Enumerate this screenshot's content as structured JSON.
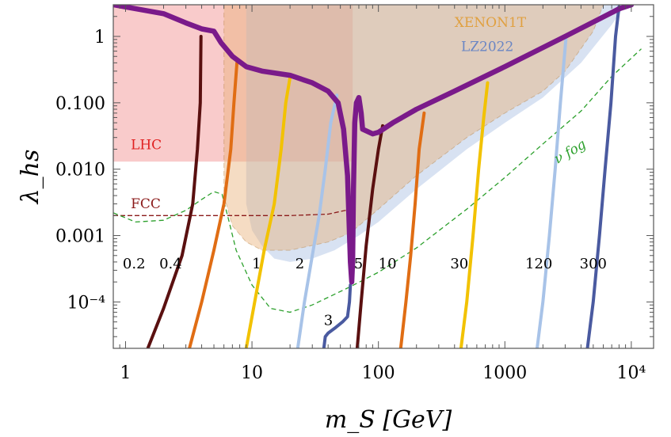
{
  "chart_data": {
    "type": "line",
    "title": "",
    "xlabel": "m_S [GeV]",
    "ylabel": "λ_hs",
    "x_scale": "log",
    "y_scale": "log",
    "xlim": [
      0.8,
      15000
    ],
    "ylim": [
      2e-05,
      3
    ],
    "x_ticks": [
      {
        "value": 1,
        "label": "1"
      },
      {
        "value": 10,
        "label": "10"
      },
      {
        "value": 100,
        "label": "100"
      },
      {
        "value": 1000,
        "label": "1000"
      },
      {
        "value": 10000,
        "label": "10⁴"
      }
    ],
    "y_ticks": [
      {
        "value": 1,
        "label": "1"
      },
      {
        "value": 0.1,
        "label": "0.100"
      },
      {
        "value": 0.01,
        "label": "0.010"
      },
      {
        "value": 0.001,
        "label": "0.001"
      },
      {
        "value": 0.0001,
        "label": "10⁻⁴"
      }
    ],
    "colors": {
      "lhc": "#f28b8b",
      "fcc": "#8b1a1a",
      "xenon_fill": "#e8b17a",
      "xenon_label": "#e0a040",
      "lz_fill": "#a9bfe3",
      "lz_label": "#6a86c4",
      "vfog": "#2ca02c",
      "relic": "#7a1a8a",
      "dark_red": "#5a1010",
      "orange": "#e06d14",
      "yellow": "#f2c200",
      "light_blue": "#a8c3e8",
      "navy": "#4a5aa0"
    },
    "regions": [
      {
        "name": "LHC",
        "label": "LHC",
        "color": "#f28b8b",
        "x_range": [
          0.8,
          62.5
        ],
        "y_range": [
          0.013,
          3
        ]
      },
      {
        "name": "XENON1T",
        "label": "XENON1T",
        "color": "#e8b17a",
        "boundary": [
          [
            6,
            3
          ],
          [
            6,
            0.004
          ],
          [
            7,
            0.0014
          ],
          [
            9,
            0.0008
          ],
          [
            12,
            0.0006
          ],
          [
            20,
            0.0006
          ],
          [
            40,
            0.0008
          ],
          [
            60,
            0.0011
          ],
          [
            100,
            0.0025
          ],
          [
            200,
            0.008
          ],
          [
            500,
            0.03
          ],
          [
            1000,
            0.07
          ],
          [
            2000,
            0.15
          ],
          [
            3000,
            0.3
          ],
          [
            5000,
            1.2
          ],
          [
            6000,
            3
          ]
        ]
      },
      {
        "name": "LZ2022",
        "label": "LZ2022",
        "color": "#a9bfe3",
        "boundary": [
          [
            9,
            3
          ],
          [
            9,
            0.003
          ],
          [
            10,
            0.0012
          ],
          [
            12,
            0.0007
          ],
          [
            15,
            0.00045
          ],
          [
            20,
            0.0004
          ],
          [
            30,
            0.00045
          ],
          [
            45,
            0.0006
          ],
          [
            70,
            0.001
          ],
          [
            100,
            0.0016
          ],
          [
            200,
            0.005
          ],
          [
            500,
            0.02
          ],
          [
            1000,
            0.05
          ],
          [
            2000,
            0.12
          ],
          [
            4000,
            0.4
          ],
          [
            7000,
            1.5
          ],
          [
            9000,
            3
          ]
        ]
      }
    ],
    "fcc": {
      "label": "FCC",
      "color": "#8b1a1a",
      "points": [
        [
          0.8,
          0.002
        ],
        [
          5,
          0.002
        ],
        [
          20,
          0.002
        ],
        [
          40,
          0.0021
        ],
        [
          55,
          0.0024
        ],
        [
          62,
          0.0035
        ]
      ]
    },
    "vfog": {
      "label": "ν fog",
      "color": "#2ca02c",
      "points": [
        [
          0.8,
          0.0022
        ],
        [
          1.2,
          0.0016
        ],
        [
          2,
          0.0017
        ],
        [
          3,
          0.0024
        ],
        [
          4,
          0.0035
        ],
        [
          5,
          0.0046
        ],
        [
          5.8,
          0.0042
        ],
        [
          6.5,
          0.0018
        ],
        [
          7.5,
          0.0006
        ],
        [
          10,
          0.00018
        ],
        [
          14,
          8e-05
        ],
        [
          20,
          7e-05
        ],
        [
          30,
          9e-05
        ],
        [
          60,
          0.00017
        ],
        [
          100,
          0.00028
        ],
        [
          200,
          0.00065
        ],
        [
          500,
          0.0025
        ],
        [
          1000,
          0.0075
        ],
        [
          2000,
          0.024
        ],
        [
          4000,
          0.075
        ],
        [
          7000,
          0.25
        ],
        [
          12000,
          0.65
        ]
      ]
    },
    "relic_curve": {
      "color": "#7a1a8a",
      "points": [
        [
          0.8,
          3
        ],
        [
          2,
          2.2
        ],
        [
          3,
          1.6
        ],
        [
          4,
          1.3
        ],
        [
          5,
          1.2
        ],
        [
          5.7,
          0.8
        ],
        [
          7,
          0.5
        ],
        [
          9,
          0.35
        ],
        [
          12,
          0.3
        ],
        [
          20,
          0.26
        ],
        [
          30,
          0.2
        ],
        [
          40,
          0.15
        ],
        [
          48,
          0.1
        ],
        [
          53,
          0.04
        ],
        [
          57,
          0.008
        ],
        [
          60,
          0.0004
        ],
        [
          61.5,
          0.0002
        ],
        [
          62.5,
          0.0004
        ],
        [
          63.5,
          0.005
        ],
        [
          65,
          0.05
        ],
        [
          67,
          0.1
        ],
        [
          70,
          0.12
        ],
        [
          73,
          0.07
        ],
        [
          75,
          0.04
        ],
        [
          90,
          0.034
        ],
        [
          100,
          0.036
        ],
        [
          130,
          0.05
        ],
        [
          200,
          0.08
        ],
        [
          400,
          0.15
        ],
        [
          1000,
          0.35
        ],
        [
          3000,
          1.0
        ],
        [
          8000,
          2.6
        ],
        [
          10000,
          3
        ]
      ]
    },
    "series": [
      {
        "name": "0.2",
        "color": "#5a1010",
        "points": [
          [
            1.5,
            2e-05
          ],
          [
            2,
            8e-05
          ],
          [
            2.8,
            0.0005
          ],
          [
            3.4,
            0.003
          ],
          [
            3.7,
            0.02
          ],
          [
            3.9,
            0.1
          ],
          [
            3.95,
            1.0
          ]
        ]
      },
      {
        "name": "0.4",
        "color": "#e06d14",
        "points": [
          [
            3.2,
            2e-05
          ],
          [
            4,
            0.0001
          ],
          [
            5,
            0.0006
          ],
          [
            6,
            0.003
          ],
          [
            6.8,
            0.02
          ],
          [
            7.2,
            0.1
          ],
          [
            7.6,
            0.4
          ]
        ]
      },
      {
        "name": "1",
        "color": "#f2c200",
        "points": [
          [
            9,
            2e-05
          ],
          [
            10.5,
            0.0001
          ],
          [
            12.5,
            0.0006
          ],
          [
            15,
            0.003
          ],
          [
            17,
            0.02
          ],
          [
            18.5,
            0.1
          ],
          [
            20,
            0.24
          ]
        ]
      },
      {
        "name": "2",
        "color": "#a8c3e8",
        "points": [
          [
            23,
            2e-05
          ],
          [
            26,
            0.0001
          ],
          [
            30,
            0.0005
          ],
          [
            34,
            0.002
          ],
          [
            38,
            0.01
          ],
          [
            42,
            0.05
          ],
          [
            47,
            0.13
          ]
        ]
      },
      {
        "name": "3",
        "color": "#4a5aa0",
        "points": [
          [
            37,
            2e-05
          ],
          [
            38,
            3e-05
          ],
          [
            40,
            3.4e-05
          ],
          [
            45,
            4e-05
          ],
          [
            52,
            5e-05
          ],
          [
            57,
            6e-05
          ],
          [
            59,
            0.0001
          ],
          [
            60,
            0.00018
          ]
        ]
      },
      {
        "name": "5",
        "color": "#5a1010",
        "points": [
          [
            68,
            2e-05
          ],
          [
            73,
            0.0001
          ],
          [
            80,
            0.0007
          ],
          [
            90,
            0.005
          ],
          [
            100,
            0.02
          ],
          [
            108,
            0.045
          ]
        ]
      },
      {
        "name": "10",
        "color": "#e06d14",
        "points": [
          [
            150,
            2e-05
          ],
          [
            165,
            0.0001
          ],
          [
            180,
            0.0005
          ],
          [
            195,
            0.003
          ],
          [
            210,
            0.02
          ],
          [
            230,
            0.07
          ]
        ]
      },
      {
        "name": "30",
        "color": "#f2c200",
        "points": [
          [
            450,
            2e-05
          ],
          [
            500,
            0.0001
          ],
          [
            560,
            0.001
          ],
          [
            620,
            0.01
          ],
          [
            680,
            0.06
          ],
          [
            730,
            0.2
          ]
        ]
      },
      {
        "name": "120",
        "color": "#a8c3e8",
        "points": [
          [
            1800,
            2e-05
          ],
          [
            2000,
            0.0001
          ],
          [
            2250,
            0.001
          ],
          [
            2500,
            0.01
          ],
          [
            2750,
            0.1
          ],
          [
            3050,
            1.0
          ]
        ]
      },
      {
        "name": "300",
        "color": "#4a5aa0",
        "points": [
          [
            4500,
            2e-05
          ],
          [
            5000,
            0.0001
          ],
          [
            5600,
            0.001
          ],
          [
            6200,
            0.01
          ],
          [
            6900,
            0.1
          ],
          [
            7500,
            1.0
          ],
          [
            8000,
            2.8
          ]
        ]
      }
    ],
    "annotations": [
      {
        "text": "LHC",
        "x": 1.1,
        "y": 0.02,
        "color": "#e02020"
      },
      {
        "text": "FCC",
        "x": 1.1,
        "y": 0.0026,
        "color": "#8b1a1a"
      },
      {
        "text": "XENON1T",
        "x": 400,
        "y": 1.4,
        "color": "#e0a040"
      },
      {
        "text": "LZ2022",
        "x": 450,
        "y": 0.6,
        "color": "#6a86c4"
      },
      {
        "text": "ν fog",
        "x": 2600,
        "y": 0.012,
        "color": "#2ca02c"
      },
      {
        "text": "0.2",
        "x": 0.95,
        "y": 0.00032,
        "color": "#000"
      },
      {
        "text": "0.4",
        "x": 1.85,
        "y": 0.00032,
        "color": "#000"
      },
      {
        "text": "1",
        "x": 10,
        "y": 0.00032,
        "color": "#000"
      },
      {
        "text": "2",
        "x": 22,
        "y": 0.00032,
        "color": "#000"
      },
      {
        "text": "5",
        "x": 64,
        "y": 0.00032,
        "color": "#000"
      },
      {
        "text": "10",
        "x": 100,
        "y": 0.00032,
        "color": "#000"
      },
      {
        "text": "30",
        "x": 370,
        "y": 0.00032,
        "color": "#000"
      },
      {
        "text": "120",
        "x": 1450,
        "y": 0.00032,
        "color": "#000"
      },
      {
        "text": "300",
        "x": 3900,
        "y": 0.00032,
        "color": "#000"
      },
      {
        "text": "3",
        "x": 37,
        "y": 4.5e-05,
        "color": "#000"
      }
    ],
    "grid": false
  }
}
